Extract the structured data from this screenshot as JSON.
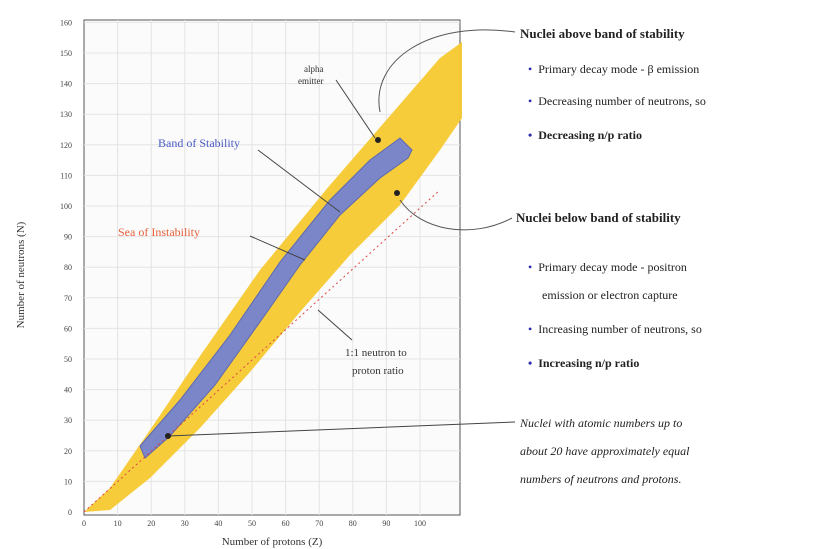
{
  "axes": {
    "ylabel": "Number of neutrons (N)",
    "xlabel": "Number of protons (Z)",
    "y_ticks": [
      "0",
      "10",
      "20",
      "30",
      "40",
      "50",
      "60",
      "70",
      "80",
      "90",
      "100",
      "110",
      "120",
      "130",
      "140",
      "150",
      "160"
    ],
    "x_ticks": [
      "0",
      "10",
      "20",
      "30",
      "40",
      "50",
      "60",
      "70",
      "80",
      "90",
      "100"
    ]
  },
  "plot_labels": {
    "band": "Band of Stability",
    "sea": "Sea of Instability",
    "ratio": [
      "1:1 neutron to",
      "proton ratio"
    ],
    "alpha": [
      "alpha",
      "emitter"
    ]
  },
  "above": {
    "title": "Nuclei above band of stability",
    "bullets": [
      "Primary decay mode - β emission",
      "Decreasing number of neutrons, so",
      "Decreasing n/p ratio"
    ]
  },
  "below": {
    "title": "Nuclei below band of stability",
    "bullets": [
      "Primary decay mode - positron",
      "emission or electron capture",
      "Increasing number of neutrons, so",
      "Increasing n/p ratio"
    ]
  },
  "note": [
    "Nuclei with atomic numbers up to",
    "about 20 have approximately equal",
    "numbers of neutrons and protons."
  ],
  "colors": {
    "sea": "#f7c930",
    "band": "#7b86c8",
    "band_label": "#4a5bc4",
    "sea_label": "#e5603a",
    "bullet": "#2b2bb0"
  }
}
